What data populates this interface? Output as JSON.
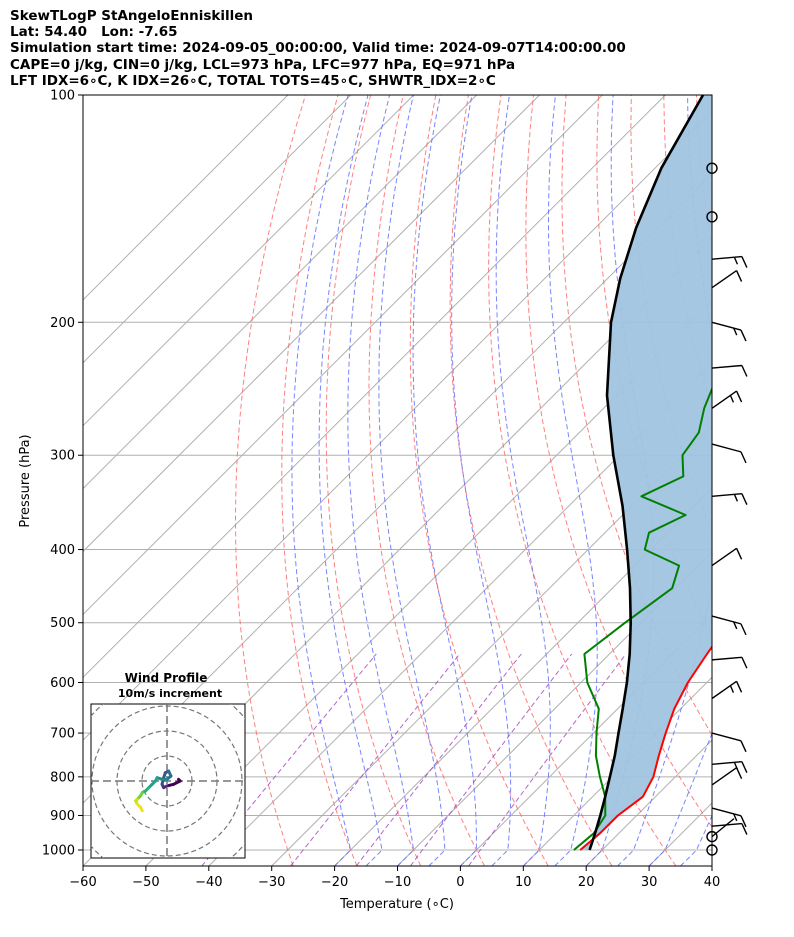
{
  "header": {
    "line1": "SkewTLogP StAngeloEnniskillen",
    "line2": "Lat: 54.40   Lon: -7.65",
    "line3": "Simulation start time: 2024-09-05_00:00:00, Valid time: 2024-09-07T14:00:00.00",
    "line4": "CAPE=0 j/kg, CIN=0 j/kg, LCL=973 hPa, LFC=977 hPa, EQ=971 hPa",
    "line5": "LFT IDX=6∘C, K IDX=26∘C, TOTAL TOTS=45∘C, SHWTR_IDX=2∘C"
  },
  "chart_data": {
    "type": "line",
    "title": "SkewTLogP StAngeloEnniskillen",
    "xlabel": "Temperature (∘C)",
    "ylabel": "Pressure (hPa)",
    "xlim": [
      -60,
      40
    ],
    "ylim": [
      1050,
      100
    ],
    "yscale": "log",
    "x_ticks": [
      "−60",
      "−50",
      "−40",
      "−30",
      "−20",
      "−10",
      "0",
      "10",
      "20",
      "30",
      "40"
    ],
    "y_ticks": [
      "100",
      "200",
      "300",
      "400",
      "500",
      "600",
      "700",
      "800",
      "900",
      "1000"
    ],
    "grid": true,
    "colors": {
      "temperature": "#ff0000",
      "dewpoint": "#008000",
      "parcel": "#000000",
      "fill": "#a0c4e0",
      "isotherm": "#b0b0b0",
      "dry_adiabat": "#ff6060",
      "moist_adiabat": "#6070ff",
      "mixing_ratio": "#a040c0"
    },
    "series": [
      {
        "key": "temperature",
        "p": [
          1000,
          950,
          900,
          850,
          800,
          750,
          700,
          650,
          600,
          550,
          500,
          450,
          400,
          375,
          350,
          325,
          300,
          275,
          250,
          225,
          200,
          190,
          175,
          160,
          150,
          140,
          130,
          125,
          120,
          115,
          110,
          105,
          100
        ],
        "t": [
          16.5,
          17.0,
          17.0,
          18.0,
          16.5,
          14.0,
          11.5,
          9.0,
          7.0,
          5.5,
          4.0,
          1.5,
          -1.0,
          -3.5,
          -5.2,
          -7.5,
          -11.5,
          -15.5,
          -19.0,
          -22.5,
          -26.5,
          -28.5,
          -30.0,
          -32.0,
          -33.0,
          -34.5,
          -36.0,
          -37.0,
          -38.0,
          -38.8,
          -39.5,
          -40.2,
          -40.8
        ]
      },
      {
        "key": "dewpoint",
        "p": [
          1000,
          950,
          900,
          850,
          800,
          750,
          700,
          650,
          600,
          550,
          500,
          450,
          420,
          400,
          380,
          360,
          340,
          320,
          300,
          280,
          260,
          240,
          220,
          200,
          185,
          170,
          160,
          150,
          140,
          130,
          120,
          110,
          100
        ],
        "t": [
          15.5,
          16.0,
          15.0,
          12.0,
          8.0,
          4.0,
          0.5,
          -3.0,
          -9.0,
          -14.0,
          -12.5,
          -10.5,
          -13.0,
          -21.0,
          -23.0,
          -20.0,
          -30.0,
          -26.5,
          -30.0,
          -31.0,
          -34.0,
          -36.5,
          -40.0,
          -43.5,
          -47.0,
          -50.0,
          -51.0,
          -56.0,
          -61.0,
          -59.0,
          -57.0,
          -56.0,
          -55.0
        ]
      },
      {
        "key": "parcel",
        "p": [
          1000,
          980,
          950,
          900,
          850,
          800,
          750,
          700,
          650,
          600,
          550,
          500,
          450,
          400,
          350,
          300,
          250,
          200,
          175,
          150,
          125,
          100
        ],
        "t": [
          18.0,
          17.3,
          16.2,
          14.2,
          12.0,
          9.6,
          7.0,
          4.0,
          0.8,
          -2.7,
          -6.8,
          -11.6,
          -17.2,
          -23.8,
          -31.5,
          -41.0,
          -51.5,
          -62.5,
          -68.0,
          -73.5,
          -79.0,
          -84.0
        ]
      }
    ],
    "wind_barbs_p": [
      125,
      145,
      165,
      180,
      200,
      230,
      260,
      290,
      340,
      420,
      490,
      560,
      630,
      700,
      770,
      820,
      880,
      930,
      960,
      1000
    ],
    "hodograph": {
      "title": "Wind Profile",
      "subtitle": "10m/s increment",
      "u": [
        3.5,
        4.0,
        2.0,
        0.0,
        -1.0,
        -1.5,
        -1.0,
        -0.5,
        0.5,
        1.2,
        0.0,
        -1.5,
        -3.0,
        -3.5,
        -4.5,
        -5.5,
        -6.5,
        -7.5,
        -8.0,
        -8.5,
        -9.0,
        -9.5,
        -9.0,
        -8.0,
        -7.5
      ],
      "v": [
        0.5,
        0.0,
        -1.0,
        -1.5,
        -2.0,
        -1.0,
        1.0,
        2.5,
        3.0,
        1.5,
        0.5,
        0.5,
        1.0,
        0.0,
        -1.0,
        -2.0,
        -3.0,
        -3.5,
        -4.5,
        -5.0,
        -5.5,
        -6.0,
        -7.0,
        -8.0,
        -9.0
      ]
    }
  }
}
